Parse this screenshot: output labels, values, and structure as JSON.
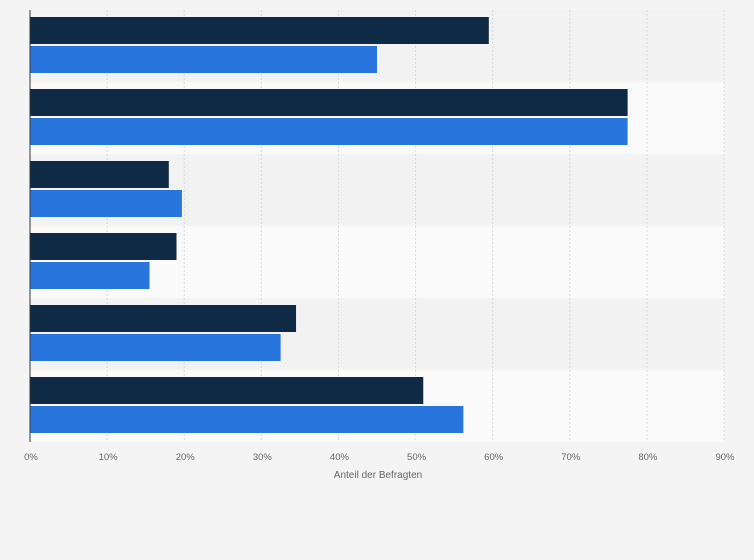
{
  "chart_data": {
    "type": "bar",
    "orientation": "horizontal",
    "categories": [
      "",
      "",
      "",
      "",
      "",
      ""
    ],
    "series": [
      {
        "color": "#0f2a44",
        "values": [
          59.5,
          77.5,
          18,
          19,
          34.5,
          51
        ]
      },
      {
        "color": "#2876dd",
        "values": [
          45,
          77.5,
          19.7,
          15.5,
          32.5,
          56.2
        ]
      }
    ],
    "x_ticks": [
      "0%",
      "10%",
      "20%",
      "30%",
      "40%",
      "50%",
      "60%",
      "70%",
      "80%",
      "90%"
    ],
    "xlim": [
      0,
      90
    ],
    "xlabel": "Anteil der Befragten",
    "grid": true,
    "legend": "none"
  }
}
